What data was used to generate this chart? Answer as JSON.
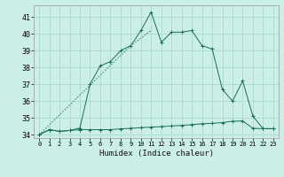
{
  "title": "",
  "xlabel": "Humidex (Indice chaleur)",
  "ylabel": "",
  "bg_color": "#cceee8",
  "grid_color": "#aad8d0",
  "line_color": "#1a6b5a",
  "xlim": [
    -0.5,
    23.5
  ],
  "ylim": [
    33.8,
    41.7
  ],
  "yticks": [
    34,
    35,
    36,
    37,
    38,
    39,
    40,
    41
  ],
  "xticks": [
    0,
    1,
    2,
    3,
    4,
    5,
    6,
    7,
    8,
    9,
    10,
    11,
    12,
    13,
    14,
    15,
    16,
    17,
    18,
    19,
    20,
    21,
    22,
    23
  ],
  "line1_x": [
    0,
    1,
    2,
    3,
    4,
    5,
    6,
    7,
    8,
    9,
    10,
    11,
    12,
    13,
    14,
    15,
    16,
    17,
    18,
    19,
    20,
    21,
    22,
    23
  ],
  "line1_y": [
    34.0,
    34.3,
    34.2,
    34.25,
    34.3,
    34.3,
    34.3,
    34.3,
    34.35,
    34.38,
    34.42,
    34.45,
    34.48,
    34.52,
    34.55,
    34.6,
    34.65,
    34.68,
    34.72,
    34.8,
    34.82,
    34.38,
    34.36,
    34.36
  ],
  "line2_x": [
    0,
    1,
    2,
    3,
    4,
    5,
    6,
    7,
    8,
    9,
    10,
    11,
    12,
    13,
    14,
    15,
    16,
    17,
    18,
    19,
    20,
    21,
    22,
    23
  ],
  "line2_y": [
    34.0,
    34.3,
    34.2,
    34.25,
    34.4,
    37.0,
    38.1,
    38.35,
    39.0,
    39.3,
    40.2,
    41.3,
    39.5,
    40.1,
    40.1,
    40.2,
    39.3,
    39.1,
    36.7,
    36.0,
    37.2,
    35.1,
    34.36,
    34.36
  ],
  "line3_x": [
    0,
    9,
    11
  ],
  "line3_y": [
    34.0,
    39.3,
    40.2
  ]
}
